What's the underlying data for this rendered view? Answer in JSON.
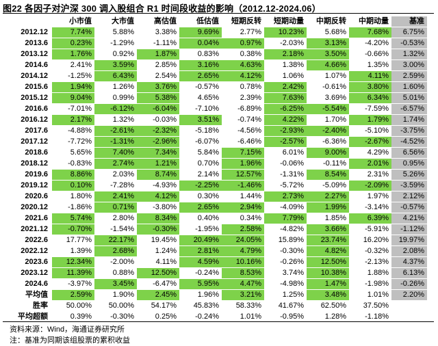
{
  "title": "图22 各因子对沪深 300 调入股组合 R1 时间段收益的影响（2012.12-2024.06）",
  "columns": [
    "小市值",
    "大市值",
    "高估值",
    "低估值",
    "短期反转",
    "短期动量",
    "中期反转",
    "中期动量",
    "基准"
  ],
  "green_color": "#7ed24a",
  "bench_color": "#bfbfbf",
  "rows": [
    {
      "label": "2012.12",
      "values": [
        "7.74%",
        "5.88%",
        "3.38%",
        "9.69%",
        "2.77%",
        "10.23%",
        "5.68%",
        "7.68%",
        "6.75%"
      ],
      "green": [
        1,
        0,
        0,
        1,
        0,
        1,
        0,
        1
      ]
    },
    {
      "label": "2013.6",
      "values": [
        "0.23%",
        "-1.29%",
        "-1.11%",
        "0.04%",
        "0.97%",
        "-2.03%",
        "3.13%",
        "-4.20%",
        "-0.53%"
      ],
      "green": [
        1,
        0,
        0,
        1,
        1,
        0,
        1,
        0
      ]
    },
    {
      "label": "2013.12",
      "values": [
        "1.76%",
        "0.92%",
        "1.87%",
        "0.83%",
        "0.38%",
        "2.18%",
        "3.50%",
        "-0.66%",
        "1.32%"
      ],
      "green": [
        1,
        0,
        1,
        0,
        0,
        1,
        1,
        0
      ]
    },
    {
      "label": "2014.6",
      "values": [
        "2.41%",
        "3.59%",
        "2.85%",
        "3.16%",
        "4.63%",
        "1.38%",
        "4.66%",
        "1.35%",
        "3.00%"
      ],
      "green": [
        0,
        1,
        0,
        1,
        1,
        0,
        1,
        0
      ]
    },
    {
      "label": "2014.12",
      "values": [
        "-1.25%",
        "6.43%",
        "2.54%",
        "2.65%",
        "4.12%",
        "1.06%",
        "1.07%",
        "4.11%",
        "2.59%"
      ],
      "green": [
        0,
        1,
        0,
        1,
        1,
        0,
        0,
        1
      ]
    },
    {
      "label": "2015.6",
      "values": [
        "1.94%",
        "1.26%",
        "3.76%",
        "-0.57%",
        "0.78%",
        "2.42%",
        "-0.61%",
        "3.80%",
        "1.60%"
      ],
      "green": [
        1,
        0,
        1,
        0,
        0,
        1,
        0,
        1
      ]
    },
    {
      "label": "2015.12",
      "values": [
        "9.04%",
        "0.99%",
        "5.38%",
        "4.65%",
        "2.39%",
        "7.63%",
        "3.69%",
        "6.34%",
        "5.01%"
      ],
      "green": [
        1,
        0,
        1,
        0,
        0,
        1,
        0,
        1
      ]
    },
    {
      "label": "2016.6",
      "values": [
        "-7.01%",
        "-6.12%",
        "-6.04%",
        "-7.10%",
        "-6.89%",
        "-6.25%",
        "-5.54%",
        "-7.59%",
        "-6.57%"
      ],
      "green": [
        0,
        1,
        1,
        0,
        0,
        1,
        1,
        0
      ]
    },
    {
      "label": "2016.12",
      "values": [
        "2.17%",
        "1.32%",
        "-0.03%",
        "3.51%",
        "-0.74%",
        "4.22%",
        "1.70%",
        "1.79%",
        "1.74%"
      ],
      "green": [
        1,
        0,
        0,
        1,
        0,
        1,
        0,
        1
      ]
    },
    {
      "label": "2017.6",
      "values": [
        "-4.88%",
        "-2.61%",
        "-2.32%",
        "-5.18%",
        "-4.56%",
        "-2.93%",
        "-2.40%",
        "-5.10%",
        "-3.75%"
      ],
      "green": [
        0,
        1,
        1,
        0,
        0,
        1,
        1,
        0
      ]
    },
    {
      "label": "2017.12",
      "values": [
        "-7.72%",
        "-1.31%",
        "-2.96%",
        "-6.07%",
        "-6.46%",
        "-2.57%",
        "-6.36%",
        "-2.67%",
        "-4.52%"
      ],
      "green": [
        0,
        1,
        1,
        0,
        0,
        1,
        0,
        1
      ]
    },
    {
      "label": "2018.6",
      "values": [
        "5.65%",
        "7.40%",
        "7.34%",
        "5.84%",
        "7.15%",
        "6.01%",
        "9.00%",
        "4.29%",
        "6.56%"
      ],
      "green": [
        0,
        1,
        1,
        0,
        1,
        0,
        1,
        0
      ]
    },
    {
      "label": "2018.12",
      "values": [
        "-0.83%",
        "2.74%",
        "1.21%",
        "0.70%",
        "1.96%",
        "-0.06%",
        "-0.11%",
        "2.01%",
        "0.95%"
      ],
      "green": [
        0,
        1,
        1,
        0,
        1,
        0,
        0,
        1
      ]
    },
    {
      "label": "2019.6",
      "values": [
        "8.86%",
        "2.03%",
        "8.74%",
        "2.14%",
        "12.57%",
        "-1.31%",
        "8.54%",
        "2.31%",
        "5.26%"
      ],
      "green": [
        1,
        0,
        1,
        0,
        1,
        0,
        1,
        0
      ]
    },
    {
      "label": "2019.12",
      "values": [
        "0.10%",
        "-7.28%",
        "-4.93%",
        "-2.25%",
        "-1.46%",
        "-5.72%",
        "-5.09%",
        "-2.09%",
        "-3.59%"
      ],
      "green": [
        1,
        0,
        0,
        1,
        1,
        0,
        0,
        1
      ]
    },
    {
      "label": "2020.6",
      "values": [
        "1.80%",
        "2.41%",
        "4.12%",
        "0.30%",
        "1.44%",
        "2.73%",
        "2.27%",
        "1.97%",
        "2.12%"
      ],
      "green": [
        0,
        1,
        1,
        0,
        0,
        1,
        1,
        0
      ]
    },
    {
      "label": "2020.12",
      "values": [
        "-1.86%",
        "0.71%",
        "-3.80%",
        "2.65%",
        "2.94%",
        "-4.09%",
        "1.99%",
        "-3.14%",
        "-0.57%"
      ],
      "green": [
        0,
        1,
        0,
        1,
        1,
        0,
        1,
        0
      ]
    },
    {
      "label": "2021.6",
      "values": [
        "5.74%",
        "2.80%",
        "8.34%",
        "0.40%",
        "0.34%",
        "7.79%",
        "1.85%",
        "6.39%",
        "4.21%"
      ],
      "green": [
        1,
        0,
        1,
        0,
        0,
        1,
        0,
        1
      ]
    },
    {
      "label": "2021.12",
      "values": [
        "-0.70%",
        "-1.54%",
        "-0.30%",
        "-1.95%",
        "2.58%",
        "-4.82%",
        "3.66%",
        "-5.91%",
        "-1.12%"
      ],
      "green": [
        1,
        0,
        1,
        0,
        1,
        0,
        1,
        0
      ]
    },
    {
      "label": "2022.6",
      "values": [
        "17.77%",
        "22.17%",
        "19.45%",
        "20.49%",
        "24.05%",
        "15.89%",
        "23.74%",
        "16.20%",
        "19.97%"
      ],
      "green": [
        0,
        1,
        0,
        1,
        1,
        0,
        1,
        0
      ]
    },
    {
      "label": "2022.12",
      "values": [
        "1.39%",
        "2.68%",
        "1.24%",
        "2.81%",
        "4.79%",
        "-0.30%",
        "4.82%",
        "-0.32%",
        "2.08%"
      ],
      "green": [
        0,
        1,
        0,
        1,
        1,
        0,
        1,
        0
      ]
    },
    {
      "label": "2023.6",
      "values": [
        "12.34%",
        "-2.00%",
        "4.11%",
        "4.59%",
        "10.16%",
        "-0.26%",
        "12.50%",
        "-2.13%",
        "4.37%"
      ],
      "green": [
        1,
        0,
        0,
        1,
        1,
        0,
        1,
        0
      ]
    },
    {
      "label": "2023.12",
      "values": [
        "11.39%",
        "0.88%",
        "12.50%",
        "-0.24%",
        "8.53%",
        "3.74%",
        "10.38%",
        "1.88%",
        "6.13%"
      ],
      "green": [
        1,
        0,
        1,
        0,
        1,
        0,
        1,
        0
      ]
    },
    {
      "label": "2024.6",
      "values": [
        "-3.97%",
        "3.45%",
        "-6.47%",
        "5.95%",
        "4.47%",
        "-4.98%",
        "1.47%",
        "-1.98%",
        "-0.26%"
      ],
      "green": [
        0,
        1,
        0,
        1,
        1,
        0,
        1,
        0
      ]
    },
    {
      "label": "平均值",
      "values": [
        "2.59%",
        "1.90%",
        "2.45%",
        "1.96%",
        "3.21%",
        "1.25%",
        "3.48%",
        "1.01%",
        "2.20%"
      ],
      "green": [
        1,
        0,
        1,
        0,
        1,
        0,
        1,
        0
      ]
    },
    {
      "label": "胜率",
      "values": [
        "50.00%",
        "50.00%",
        "54.17%",
        "45.83%",
        "58.33%",
        "41.67%",
        "62.50%",
        "37.50%",
        ""
      ],
      "green": [
        0,
        0,
        0,
        0,
        0,
        0,
        0,
        0
      ]
    },
    {
      "label": "平均超额",
      "values": [
        "0.39%",
        "-0.30%",
        "0.25%",
        "-0.24%",
        "1.01%",
        "-0.95%",
        "1.28%",
        "-1.18%",
        ""
      ],
      "green": [
        0,
        0,
        0,
        0,
        0,
        0,
        0,
        0
      ]
    }
  ],
  "notes": [
    "资料来源：Wind，海通证券研究所",
    "注：基准为同期该组股票的累积收益"
  ]
}
